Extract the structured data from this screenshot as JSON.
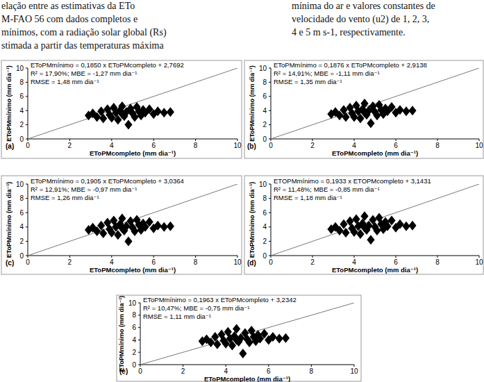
{
  "caption": {
    "left": [
      "elação entre as estimativas da ETo",
      "M-FAO 56 com dados completos e",
      "mínimos, com a radiação solar global (Rs)",
      "stimada a partir das temperaturas máxima"
    ],
    "right": [
      "mínima do ar e valores constantes de",
      "velocidade do vento (u2) de 1, 2, 3,",
      "4 e 5 m s-1, respectivamente."
    ]
  },
  "chart_data": [
    {
      "type": "scatter",
      "title": "(a)",
      "x_label": "EToPMcompleto (mm dia⁻¹)",
      "y_label": "EToPMmínimo (mm dia⁻¹)",
      "annotations": [
        "EToPMmínimo = 0,1850 x EToPMcompleto + 2,7692",
        "R² = 17,90%; MBE = -1,27 mm dia⁻¹",
        "RMSE = 1,48 mm dia⁻¹"
      ],
      "xlim": [
        0,
        10
      ],
      "ylim": [
        0,
        10
      ],
      "xticks": [
        0,
        2,
        4,
        6,
        8,
        10
      ],
      "yticks": [
        0,
        2,
        4,
        6,
        8,
        10
      ],
      "marker": "diamond",
      "color": "#000000",
      "x": [
        2.9,
        3.1,
        3.3,
        3.5,
        3.6,
        3.8,
        3.9,
        4.0,
        4.1,
        4.2,
        4.3,
        4.4,
        4.5,
        4.5,
        4.6,
        4.7,
        4.8,
        4.9,
        5.0,
        5.1,
        5.2,
        5.3,
        5.4,
        5.5,
        5.6,
        5.8,
        6.0,
        6.2,
        6.5,
        6.8
      ],
      "y": [
        3.3,
        3.6,
        3.1,
        3.9,
        2.9,
        4.2,
        3.4,
        3.0,
        4.4,
        3.7,
        2.7,
        4.0,
        3.5,
        4.6,
        3.2,
        3.8,
        2.0,
        4.3,
        3.6,
        3.1,
        4.5,
        3.9,
        3.3,
        4.1,
        3.7,
        4.2,
        3.5,
        3.9,
        3.7,
        3.8
      ]
    },
    {
      "type": "scatter",
      "title": "(b)",
      "x_label": "EToPMcompleto (mm dia⁻¹)",
      "y_label": "EToPMmínimo (mm dia⁻¹)",
      "annotations": [
        "EToPMmínimo = 0,1876 x EToPMcompleto + 2,9138",
        "R² = 14,91%; MBE = -1,11 mm dia⁻¹",
        "RMSE = 1,35 mm dia⁻¹"
      ],
      "xlim": [
        0,
        10
      ],
      "ylim": [
        0,
        10
      ],
      "xticks": [
        0,
        2,
        4,
        6,
        8,
        10
      ],
      "yticks": [
        0,
        2,
        4,
        6,
        8,
        10
      ],
      "marker": "diamond",
      "color": "#000000",
      "x": [
        2.9,
        3.1,
        3.3,
        3.5,
        3.6,
        3.8,
        3.9,
        4.0,
        4.1,
        4.2,
        4.3,
        4.4,
        4.5,
        4.5,
        4.6,
        4.7,
        4.8,
        4.9,
        5.0,
        5.1,
        5.2,
        5.3,
        5.4,
        5.5,
        5.6,
        5.8,
        6.0,
        6.2,
        6.5,
        6.8
      ],
      "y": [
        3.5,
        3.8,
        3.3,
        4.1,
        3.1,
        4.4,
        3.6,
        3.1,
        4.7,
        3.9,
        2.9,
        4.2,
        3.7,
        5.0,
        3.4,
        4.0,
        2.2,
        4.6,
        3.8,
        3.3,
        4.8,
        4.1,
        3.5,
        4.3,
        3.9,
        4.5,
        3.7,
        4.1,
        3.9,
        4.0
      ]
    },
    {
      "type": "scatter",
      "title": "(c)",
      "x_label": "EToPMcompleto (mm dia⁻¹)",
      "y_label": "EToPMmínimo (mm dia⁻¹)",
      "annotations": [
        "EToPMmínimo = 0,1905 x EToPMcompleto + 3,0364",
        "R² = 12,91%; MBE = -0,97 mm dia⁻¹",
        "RMSE = 1,26 mm dia⁻¹"
      ],
      "xlim": [
        0,
        10
      ],
      "ylim": [
        0,
        10
      ],
      "xticks": [
        0,
        2,
        4,
        6,
        8,
        10
      ],
      "yticks": [
        0,
        2,
        4,
        6,
        8,
        10
      ],
      "marker": "diamond",
      "color": "#000000",
      "x": [
        2.9,
        3.1,
        3.3,
        3.5,
        3.6,
        3.8,
        3.9,
        4.0,
        4.1,
        4.2,
        4.3,
        4.4,
        4.5,
        4.5,
        4.6,
        4.7,
        4.8,
        4.9,
        5.0,
        5.1,
        5.2,
        5.3,
        5.4,
        5.5,
        5.6,
        5.8,
        6.0,
        6.2,
        6.5,
        6.8
      ],
      "y": [
        3.6,
        3.9,
        3.4,
        4.2,
        3.1,
        4.6,
        3.7,
        3.2,
        4.9,
        4.0,
        2.9,
        4.4,
        3.8,
        5.2,
        3.5,
        4.1,
        2.0,
        4.8,
        3.9,
        3.4,
        5.0,
        4.3,
        3.6,
        4.5,
        4.0,
        4.7,
        3.8,
        4.2,
        4.0,
        4.1
      ]
    },
    {
      "type": "scatter",
      "title": "(d)",
      "x_label": "EToPMcompleto (mm dia⁻¹)",
      "y_label": "EToPMmínimo (mm dia⁻¹)",
      "annotations": [
        "ETOPMmínimo = 0,1933 x ETOPMcompleto + 3,1431",
        "R² = 11,48%; MBE = -0,85 mm dia⁻¹",
        "RMSE = 1,18 mm dia⁻¹"
      ],
      "xlim": [
        0,
        10
      ],
      "ylim": [
        0,
        10
      ],
      "xticks": [
        0,
        2,
        4,
        6,
        8,
        10
      ],
      "yticks": [
        0,
        2,
        4,
        6,
        8,
        10
      ],
      "marker": "diamond",
      "color": "#000000",
      "x": [
        2.9,
        3.1,
        3.3,
        3.5,
        3.6,
        3.8,
        3.9,
        4.0,
        4.1,
        4.2,
        4.3,
        4.4,
        4.5,
        4.5,
        4.6,
        4.7,
        4.8,
        4.9,
        5.0,
        5.1,
        5.2,
        5.3,
        5.4,
        5.5,
        5.6,
        5.8,
        6.0,
        6.2,
        6.5,
        6.8
      ],
      "y": [
        3.7,
        4.0,
        3.5,
        4.4,
        3.2,
        4.8,
        3.8,
        3.3,
        5.1,
        4.1,
        3.0,
        4.5,
        3.9,
        5.5,
        3.6,
        4.2,
        2.2,
        5.0,
        4.0,
        3.5,
        5.3,
        4.4,
        3.7,
        4.7,
        4.1,
        4.9,
        3.9,
        4.4,
        4.1,
        4.2
      ]
    },
    {
      "type": "scatter",
      "title": "(e)",
      "x_label": "EToPMcompleto (mm dia⁻¹)",
      "y_label": "EToPMmínimo (mm dia⁻¹)",
      "annotations": [
        "EToPMmínimo = 0,1963 x EToPMcompleto + 3,2342",
        "R² = 10,47%; MBE = -0,75 mm dia⁻¹",
        "RMSE = 1,11 mm dia⁻¹"
      ],
      "xlim": [
        0,
        10
      ],
      "ylim": [
        0,
        10
      ],
      "xticks": [
        0,
        2,
        4,
        6,
        8,
        10
      ],
      "yticks": [
        0,
        2,
        4,
        6,
        8,
        10
      ],
      "marker": "diamond",
      "color": "#000000",
      "x": [
        2.9,
        3.1,
        3.3,
        3.5,
        3.6,
        3.8,
        3.9,
        4.0,
        4.1,
        4.2,
        4.3,
        4.4,
        4.5,
        4.5,
        4.6,
        4.7,
        4.8,
        4.9,
        5.0,
        5.1,
        5.2,
        5.3,
        5.4,
        5.5,
        5.6,
        5.8,
        6.0,
        6.2,
        6.5,
        6.8
      ],
      "y": [
        3.8,
        4.1,
        3.6,
        4.5,
        3.3,
        4.9,
        3.9,
        3.4,
        5.3,
        4.2,
        3.1,
        4.6,
        4.0,
        5.8,
        3.7,
        4.3,
        1.8,
        5.1,
        4.1,
        3.6,
        5.5,
        4.5,
        3.8,
        4.8,
        4.2,
        5.0,
        4.0,
        4.5,
        4.2,
        4.3
      ]
    }
  ]
}
